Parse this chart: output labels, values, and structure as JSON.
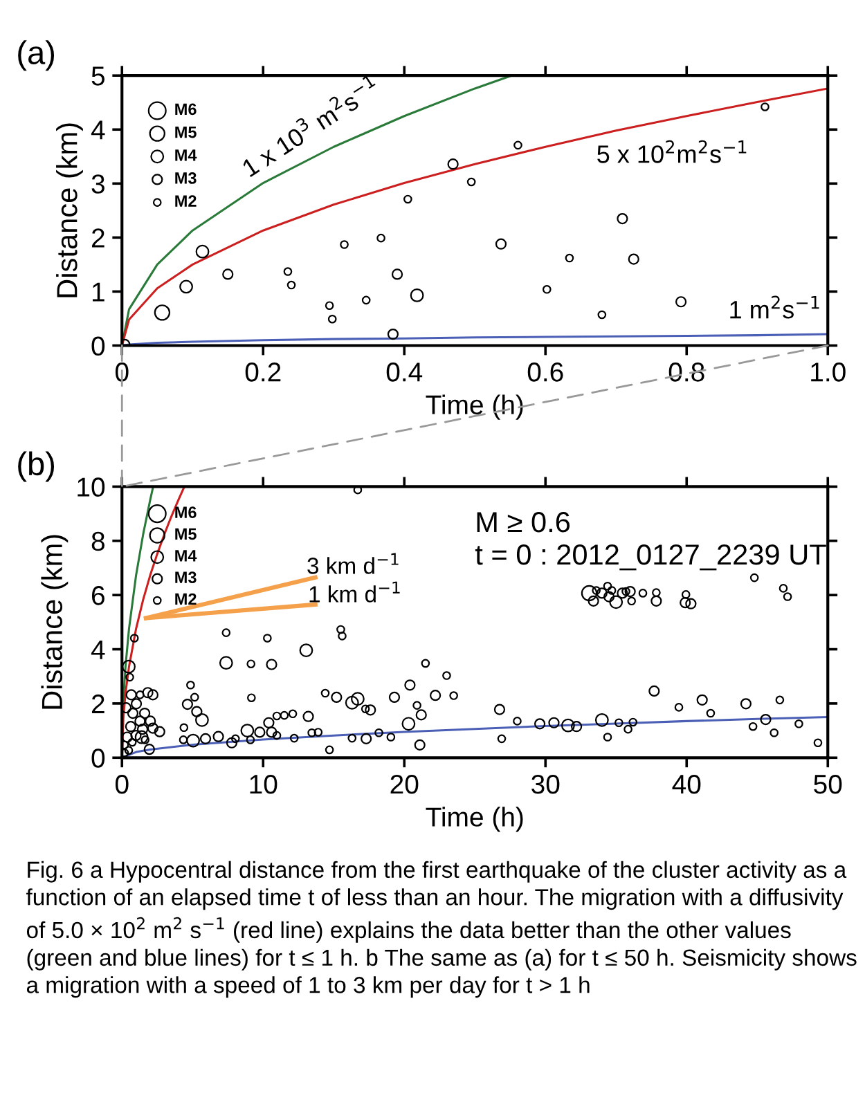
{
  "chart_data": [
    {
      "type": "bubble",
      "title": "(a)",
      "xlabel": "Time (h)",
      "ylabel": "Distance (km)",
      "xlim": [
        0,
        1
      ],
      "ylim": [
        0,
        5
      ],
      "xticks": [
        0,
        0.2,
        0.4,
        0.6,
        0.8,
        {
          "value": 1,
          "label": "1.0"
        }
      ],
      "yticks": [
        0,
        1,
        2,
        3,
        4,
        5
      ],
      "size_legend": [
        {
          "value": 6,
          "label": "M6"
        },
        {
          "value": 5,
          "label": "M5"
        },
        {
          "value": 4,
          "label": "M4"
        },
        {
          "value": 3,
          "label": "M3"
        },
        {
          "value": 2,
          "label": "M2"
        }
      ],
      "series": [
        {
          "color": "#000000",
          "x": [
            0.004,
            0.057,
            0.091,
            0.114,
            0.15,
            0.235,
            0.24,
            0.294,
            0.298,
            0.315,
            0.346,
            0.367,
            0.39,
            0.384,
            0.405,
            0.418,
            0.469,
            0.495,
            0.537,
            0.561,
            0.602,
            0.634,
            0.68,
            0.709,
            0.725,
            0.792,
            0.911
          ],
          "values": [
            0.02,
            0.61,
            1.09,
            1.74,
            1.32,
            1.37,
            1.12,
            0.74,
            0.49,
            1.87,
            0.84,
            1.99,
            1.32,
            0.21,
            2.71,
            0.93,
            3.36,
            3.03,
            1.88,
            3.71,
            1.04,
            1.62,
            0.57,
            2.35,
            1.6,
            0.81,
            4.42
          ],
          "sizes": [
            3,
            5,
            4,
            4,
            3,
            2,
            2,
            2,
            2,
            2,
            2,
            2,
            3,
            3,
            2,
            4,
            3,
            2,
            3,
            2,
            2,
            2,
            2,
            3,
            3,
            3,
            2
          ]
        },
        {
          "type": "line",
          "color": "#2a7a3a",
          "x": [
            0,
            0.01,
            0.05,
            0.1,
            0.2,
            0.3,
            0.4,
            0.5,
            0.552
          ],
          "values": [
            0,
            0.67,
            1.5,
            2.13,
            3.01,
            3.68,
            4.25,
            4.76,
            5.0
          ]
        },
        {
          "type": "line",
          "color": "#cc1f1f",
          "x": [
            0,
            0.01,
            0.05,
            0.1,
            0.2,
            0.3,
            0.4,
            0.5,
            0.6,
            0.7,
            0.8,
            0.9,
            1.0
          ],
          "values": [
            0,
            0.48,
            1.06,
            1.5,
            2.13,
            2.61,
            3.01,
            3.36,
            3.68,
            3.98,
            4.25,
            4.51,
            4.76
          ]
        },
        {
          "type": "line",
          "color": "#4a5fb5",
          "x": [
            0,
            0.01,
            0.05,
            0.1,
            0.2,
            0.3,
            0.4,
            0.5,
            0.6,
            0.7,
            0.8,
            0.9,
            1.0
          ],
          "values": [
            0,
            0.02,
            0.05,
            0.07,
            0.1,
            0.12,
            0.13,
            0.15,
            0.16,
            0.17,
            0.18,
            0.19,
            0.21
          ]
        }
      ],
      "annotations": [
        "1 x 10$^{3}$ m$^{2}$s$^{−1}$",
        "5 x 10$^{2}$m$^{2}$s$^{−1}$",
        "1 m$^{2}$s$^{−1}$"
      ]
    },
    {
      "type": "bubble",
      "title": "(b)",
      "xlabel": "Time (h)",
      "ylabel": "Distance (km)",
      "xlim": [
        0,
        50
      ],
      "ylim": [
        0,
        10
      ],
      "xticks": [
        0,
        10,
        20,
        30,
        40,
        50
      ],
      "yticks": [
        0,
        2,
        4,
        6,
        8,
        10
      ],
      "size_legend": [
        {
          "value": 6,
          "label": "M6"
        },
        {
          "value": 5,
          "label": "M5"
        },
        {
          "value": 4,
          "label": "M4"
        },
        {
          "value": 3,
          "label": "M3"
        },
        {
          "value": 2,
          "label": "M2"
        }
      ],
      "series": [
        {
          "color": "#000000",
          "x": [
            16.7,
            0.88,
            0.48,
            0.55,
            0.66,
            1.28,
            1.83,
            2.19,
            1.02,
            0.29,
            0.77,
            1.61,
            1.28,
            2.01,
            0.62,
            1.46,
            2.19,
            2.67,
            0.37,
            0.99,
            0.18,
            0.48,
            1.94,
            1.64,
            0.73,
            0.18,
            1.39,
            7.38,
            7.38,
            9.14,
            10.6,
            10.3,
            13.05,
            15.5,
            15.6,
            21.5,
            23.0,
            23.5,
            4.86,
            5.15,
            4.64,
            5.3,
            5.67,
            4.39,
            5.04,
            4.35,
            5.92,
            6.83,
            7.78,
            8.04,
            8.88,
            9.1,
            9.17,
            9.76,
            10.4,
            10.6,
            10.97,
            10.97,
            11.5,
            12.1,
            12.2,
            13.2,
            13.45,
            13.9,
            14.4,
            14.7,
            15.2,
            16.3,
            16.7,
            17.25,
            17.6,
            17.3,
            16.3,
            18.2,
            19.05,
            19.3,
            20.4,
            20.3,
            20.9,
            21.2,
            21.1,
            22.2,
            26.75,
            26.9,
            28.0,
            29.6,
            30.6,
            31.6,
            32.2,
            34.0,
            34.4,
            35.2,
            36.2,
            35.85,
            37.7,
            39.45,
            41.1,
            41.7,
            44.2,
            44.7,
            45.6,
            46.2,
            46.6,
            47.95,
            49.3,
            44.8,
            46.85,
            47.15,
            33.1,
            33.4,
            34.0,
            34.4,
            34.5,
            35.0,
            35.45,
            36.0,
            35.7,
            36.1,
            36.9,
            37.85,
            37.85,
            39.95,
            39.9,
            40.3,
            34.7,
            33.6
          ],
          "values": [
            9.88,
            4.41,
            3.36,
            2.97,
            2.32,
            2.32,
            2.4,
            2.32,
            1.99,
            1.84,
            1.64,
            1.64,
            1.35,
            1.35,
            1.15,
            1.05,
            1.09,
            0.96,
            0.76,
            0.82,
            0.47,
            0.27,
            0.31,
            0.66,
            0.57,
            0.18,
            0.76,
            4.61,
            3.5,
            3.46,
            3.44,
            4.41,
            3.96,
            4.73,
            4.49,
            3.48,
            3.03,
            2.29,
            2.68,
            2.23,
            1.97,
            1.7,
            1.39,
            1.11,
            0.63,
            0.66,
            0.7,
            0.78,
            0.55,
            0.7,
            1.0,
            0.66,
            2.21,
            0.94,
            1.29,
            0.94,
            1.54,
            0.82,
            1.56,
            1.62,
            0.72,
            1.52,
            0.92,
            0.94,
            2.38,
            0.29,
            2.23,
            2.03,
            2.17,
            1.8,
            1.76,
            0.7,
            0.72,
            0.92,
            0.76,
            2.23,
            2.68,
            1.25,
            1.93,
            1.58,
            0.47,
            2.3,
            1.78,
            0.7,
            1.35,
            1.25,
            1.29,
            1.19,
            1.15,
            1.39,
            0.76,
            1.29,
            1.31,
            1.05,
            2.46,
            1.86,
            2.13,
            1.64,
            1.99,
            1.15,
            1.41,
            0.92,
            2.13,
            1.25,
            0.55,
            6.64,
            6.25,
            5.94,
            6.07,
            5.78,
            6.07,
            6.33,
            5.94,
            5.74,
            6.07,
            6.13,
            6.13,
            5.78,
            6.07,
            6.09,
            5.78,
            6.02,
            5.72,
            5.68,
            6.17,
            6.17
          ],
          "sizes": [
            2,
            2,
            4,
            2,
            3,
            2,
            3,
            3,
            3,
            3,
            3,
            3,
            3,
            3,
            3,
            3,
            3,
            3,
            3,
            3,
            2,
            2,
            3,
            2,
            2,
            2,
            4,
            2,
            4,
            2,
            3,
            2,
            4,
            2,
            2,
            2,
            2,
            2,
            2,
            2,
            3,
            3,
            4,
            2,
            4,
            2,
            3,
            3,
            3,
            2,
            4,
            2,
            2,
            3,
            3,
            3,
            2,
            2,
            2,
            2,
            2,
            3,
            2,
            2,
            2,
            2,
            3,
            4,
            4,
            2,
            3,
            3,
            2,
            2,
            2,
            3,
            3,
            4,
            2,
            3,
            3,
            3,
            3,
            2,
            2,
            3,
            3,
            4,
            3,
            4,
            2,
            2,
            2,
            2,
            3,
            2,
            3,
            2,
            3,
            2,
            3,
            2,
            2,
            2,
            2,
            2,
            2,
            2,
            5,
            3,
            3,
            2,
            3,
            4,
            3,
            3,
            2,
            2,
            2,
            2,
            3,
            2,
            3,
            3,
            2,
            2
          ]
        },
        {
          "type": "line",
          "color": "#2a7a3a",
          "x": [
            0,
            0.1,
            0.25,
            0.5,
            1.0,
            1.5,
            2.0,
            2.21
          ],
          "values": [
            0,
            2.13,
            3.36,
            4.76,
            6.73,
            8.24,
            9.51,
            10.0
          ]
        },
        {
          "type": "line",
          "color": "#cc1f1f",
          "x": [
            0,
            0.1,
            0.25,
            0.5,
            1.0,
            1.5,
            2.0,
            2.5,
            3.0,
            3.5,
            4.0,
            4.42
          ],
          "values": [
            0,
            1.5,
            2.38,
            3.36,
            4.76,
            5.83,
            6.73,
            7.52,
            8.24,
            8.9,
            9.51,
            10.0
          ]
        },
        {
          "type": "line",
          "color": "#4a5fb5",
          "x": [
            0,
            1,
            2,
            5,
            10,
            15,
            20,
            25,
            30,
            35,
            40,
            45,
            50
          ],
          "values": [
            0,
            0.21,
            0.3,
            0.48,
            0.67,
            0.82,
            0.95,
            1.06,
            1.17,
            1.26,
            1.35,
            1.43,
            1.5
          ]
        },
        {
          "type": "line",
          "color": "#f5a04a",
          "x": [
            1.7,
            13.7
          ],
          "values": [
            5.15,
            6.65
          ]
        },
        {
          "type": "line",
          "color": "#f5a04a",
          "x": [
            1.7,
            13.7
          ],
          "values": [
            5.15,
            5.65
          ]
        }
      ],
      "annotations": [
        "3 km d$^{−1}$",
        "1 km d$^{−1}$",
        "M ≥ 0.6",
        "t = 0 : 2012_0127_2239 UT",
        "Fig. 6 a Hypocentral distance from the first earthquake of the cluster activity as a function of an elapsed time t of less than an hour. The migration with a diffusivity of 5.0 × 10$^{2}$ m$^{2}$ s$^{−1}$ (red line) explains the data better than the other values (green and blue lines) for t ≤ 1 h. b The same as (a) for t ≤ 50 h. Seismicity shows a migration with a speed of 1 to 3 km per day for t > 1 h"
      ]
    }
  ]
}
